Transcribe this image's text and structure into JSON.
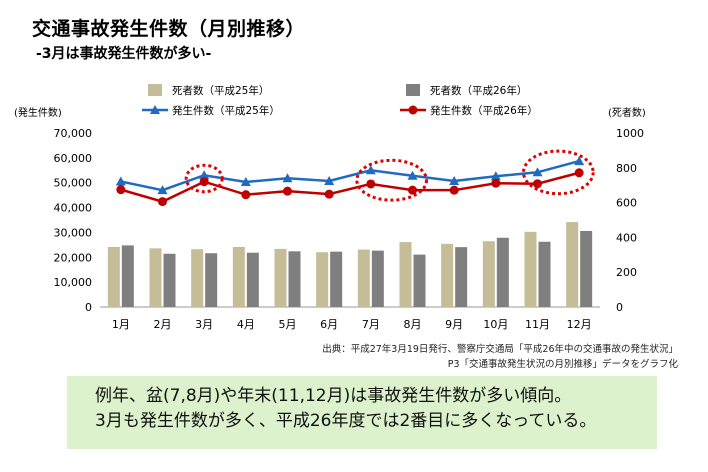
{
  "title": "交通事故発生件数（月別推移）",
  "subtitle": "-3月は事故発生件数が多い-",
  "chart_data": {
    "type": "bar+line",
    "categories": [
      "1月",
      "2月",
      "3月",
      "4月",
      "5月",
      "6月",
      "7月",
      "8月",
      "9月",
      "10月",
      "11月",
      "12月"
    ],
    "left_axis": {
      "label": "(発生件数)",
      "range": [
        0,
        70000
      ],
      "ticks": [
        "0",
        "10,000",
        "20,000",
        "30,000",
        "40,000",
        "50,000",
        "60,000",
        "70,000"
      ]
    },
    "right_axis": {
      "label": "(死者数)",
      "range": [
        0,
        1000
      ],
      "ticks": [
        "0",
        "200",
        "400",
        "600",
        "800",
        "1000"
      ]
    },
    "bar_series": [
      {
        "name": "死者数（平成25年）",
        "axis": "right",
        "color": "#c4bd97",
        "values": [
          345,
          337,
          332,
          345,
          334,
          315,
          330,
          373,
          363,
          378,
          432,
          488
        ]
      },
      {
        "name": "死者数（平成26年）",
        "axis": "right",
        "color": "#7f7f7f",
        "values": [
          354,
          306,
          309,
          312,
          320,
          318,
          324,
          301,
          344,
          398,
          375,
          437
        ]
      }
    ],
    "line_series": [
      {
        "name": "発生件数（平成25年）",
        "axis": "left",
        "color": "#1f6bc1",
        "marker": "triangle",
        "values": [
          50500,
          47000,
          53000,
          50300,
          51800,
          50700,
          55000,
          52800,
          50700,
          52600,
          54200,
          58700
        ]
      },
      {
        "name": "発生件数（平成26年）",
        "axis": "left",
        "color": "#c00000",
        "marker": "circle",
        "values": [
          47200,
          42400,
          50400,
          45200,
          46600,
          45400,
          49500,
          47000,
          47000,
          49800,
          49600,
          54000
        ]
      }
    ],
    "highlights": [
      "3月",
      "7月",
      "8月",
      "11月",
      "12月"
    ],
    "legend": "top"
  },
  "source": {
    "line1": "出典：平成27年3月19日発行、警察庁交通局「平成26年中の交通事故の発生状況」",
    "line2": "P3「交通事故発生状況の月別推移」データをグラフ化"
  },
  "note": {
    "line1": "例年、盆(7,8月)や年末(11,12月)は事故発生件数が多い傾向。",
    "line2": "3月も発生件数が多く、平成26年度では2番目に多くなっている。"
  }
}
